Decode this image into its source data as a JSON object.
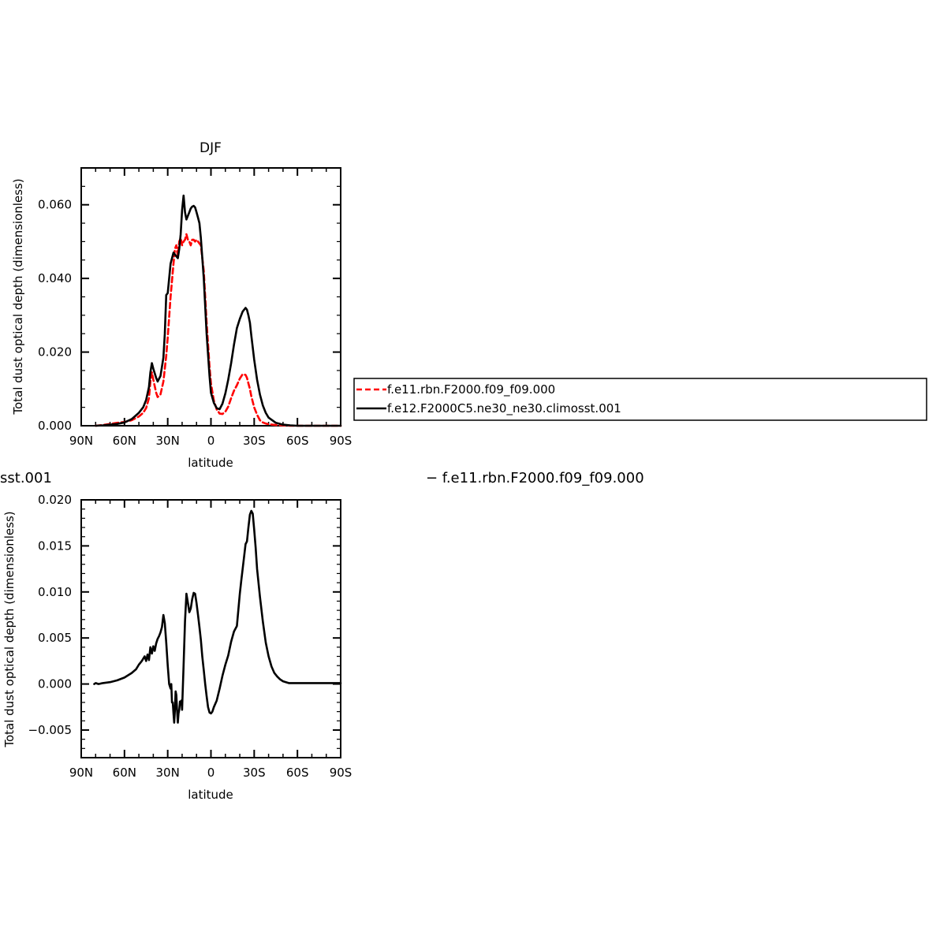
{
  "chart_data": [
    {
      "type": "line",
      "title": "DJF",
      "xlabel": "latitude",
      "ylabel": "Total dust optical depth (dimensionless)",
      "xlim": [
        90,
        -90
      ],
      "ylim": [
        0,
        0.07
      ],
      "xticks": [
        90,
        60,
        30,
        0,
        -30,
        -60,
        -90
      ],
      "xtick_labels": [
        "90N",
        "60N",
        "30N",
        "0",
        "30S",
        "60S",
        "90S"
      ],
      "yticks": [
        0.0,
        0.02,
        0.04,
        0.06
      ],
      "ytick_labels": [
        "0.000",
        "0.020",
        "0.040",
        "0.060"
      ],
      "legend": {
        "placement": "right",
        "entries": [
          {
            "label": "f.e11.rbn.F2000.f09_f09.000",
            "color": "#ff0000",
            "style": "dashed"
          },
          {
            "label": "f.e12.F2000C5.ne30_ne30.climosst.001",
            "color": "#000000",
            "style": "solid"
          }
        ]
      },
      "series": [
        {
          "name": "f.e11.rbn.F2000.f09_f09.000",
          "color": "#ff0000",
          "dash": true,
          "x": [
            80,
            75,
            70,
            65,
            60,
            55,
            50,
            47,
            45,
            43,
            42,
            41,
            40,
            38,
            37,
            35,
            33,
            31,
            30,
            28,
            26,
            25,
            24,
            23,
            22,
            21,
            20,
            19,
            18,
            17,
            16,
            15,
            14,
            13,
            12,
            11,
            10,
            9,
            8,
            7,
            5,
            3,
            1,
            0,
            -2,
            -4,
            -6,
            -8,
            -10,
            -12,
            -14,
            -16,
            -18,
            -20,
            -22,
            -24,
            -25,
            -26,
            -27,
            -28,
            -30,
            -32,
            -34,
            -36,
            -38,
            -40,
            -45,
            -50,
            -55,
            -60,
            -70,
            -80,
            -90
          ],
          "y": [
            0.0,
            0.0002,
            0.0005,
            0.0008,
            0.001,
            0.0015,
            0.0025,
            0.0035,
            0.0048,
            0.0075,
            0.012,
            0.0145,
            0.0125,
            0.009,
            0.0078,
            0.0085,
            0.012,
            0.019,
            0.024,
            0.035,
            0.044,
            0.048,
            0.049,
            0.046,
            0.05,
            0.051,
            0.049,
            0.05,
            0.0505,
            0.052,
            0.0505,
            0.05,
            0.049,
            0.0505,
            0.0505,
            0.05,
            0.0505,
            0.05,
            0.0495,
            0.049,
            0.042,
            0.028,
            0.016,
            0.0115,
            0.0068,
            0.0044,
            0.0033,
            0.0032,
            0.0038,
            0.0052,
            0.0075,
            0.0095,
            0.011,
            0.0128,
            0.014,
            0.0138,
            0.013,
            0.0115,
            0.01,
            0.008,
            0.005,
            0.003,
            0.0015,
            0.0009,
            0.0006,
            0.0004,
            0.0002,
            0.0001,
            0.0,
            0.0,
            0.0,
            0.0,
            0.0
          ]
        },
        {
          "name": "f.e12.F2000C5.ne30_ne30.climosst.001",
          "color": "#000000",
          "dash": false,
          "x": [
            80,
            75,
            70,
            65,
            60,
            55,
            50,
            47,
            45,
            43,
            42,
            41,
            40,
            38,
            37,
            35,
            33,
            32,
            31,
            30,
            28,
            26,
            25,
            24,
            23,
            22,
            21,
            20,
            19,
            18,
            17,
            16,
            15,
            14,
            13,
            12,
            11,
            10,
            9,
            8,
            7,
            5,
            3,
            1,
            0,
            -2,
            -4,
            -6,
            -8,
            -10,
            -12,
            -14,
            -16,
            -18,
            -20,
            -22,
            -24,
            -25,
            -26,
            -27,
            -28,
            -30,
            -32,
            -34,
            -36,
            -38,
            -40,
            -45,
            -50,
            -55,
            -60,
            -70,
            -80,
            -90
          ],
          "y": [
            0.0,
            0.0001,
            0.0003,
            0.0005,
            0.0009,
            0.0018,
            0.0035,
            0.005,
            0.007,
            0.0105,
            0.0145,
            0.017,
            0.0155,
            0.013,
            0.012,
            0.0135,
            0.0185,
            0.025,
            0.0355,
            0.036,
            0.044,
            0.047,
            0.0465,
            0.046,
            0.0455,
            0.048,
            0.052,
            0.0585,
            0.0625,
            0.058,
            0.056,
            0.057,
            0.058,
            0.059,
            0.0595,
            0.0597,
            0.0593,
            0.058,
            0.0565,
            0.055,
            0.051,
            0.04,
            0.025,
            0.0135,
            0.009,
            0.0062,
            0.0048,
            0.0045,
            0.006,
            0.0088,
            0.0125,
            0.017,
            0.022,
            0.0265,
            0.029,
            0.031,
            0.032,
            0.0315,
            0.03,
            0.028,
            0.0245,
            0.018,
            0.0125,
            0.0085,
            0.0055,
            0.0035,
            0.0022,
            0.0008,
            0.0003,
            0.0001,
            0.0,
            0.0,
            0.0,
            0.0
          ]
        }
      ]
    },
    {
      "type": "line",
      "title": "",
      "xlabel": "latitude",
      "ylabel": "Total dust optical depth (dimensionless)",
      "xlim": [
        90,
        -90
      ],
      "ylim": [
        -0.008,
        0.02
      ],
      "xticks": [
        90,
        60,
        30,
        0,
        -30,
        -60,
        -90
      ],
      "xtick_labels": [
        "90N",
        "60N",
        "30N",
        "0",
        "30S",
        "60S",
        "90S"
      ],
      "yticks": [
        -0.005,
        0.0,
        0.005,
        0.01,
        0.015,
        0.02
      ],
      "ytick_labels": [
        "−0.005",
        "0.000",
        "0.005",
        "0.010",
        "0.015",
        "0.020"
      ],
      "series": [
        {
          "color": "#000000",
          "dash": false,
          "x": [
            81,
            80,
            78,
            75,
            70,
            65,
            60,
            55,
            52,
            50,
            48,
            46,
            45,
            44,
            43,
            42,
            41,
            40,
            39,
            38,
            37,
            36,
            35,
            34,
            33,
            32,
            31,
            30,
            29,
            28,
            27.5,
            27,
            26.5,
            26,
            25.5,
            25,
            24.5,
            24,
            23.5,
            23,
            22.5,
            22,
            21.5,
            21,
            20.5,
            20,
            19,
            18,
            17,
            16,
            15,
            14,
            13,
            12,
            11,
            10,
            9,
            8,
            7,
            6,
            5,
            4,
            3,
            2,
            1,
            0,
            -1,
            -2,
            -4,
            -6,
            -8,
            -10,
            -12,
            -14,
            -16,
            -18,
            -20,
            -21,
            -22,
            -23,
            -24,
            -25,
            -26,
            -27,
            -28,
            -29,
            -30,
            -31,
            -32,
            -34,
            -36,
            -38,
            -40,
            -42,
            -44,
            -46,
            -48,
            -50,
            -52,
            -54,
            -56,
            -58,
            -60,
            -65,
            -70,
            -80,
            -90
          ],
          "y": [
            0.0,
            0.0001,
            0.0,
            0.0001,
            0.0002,
            0.0004,
            0.0007,
            0.0012,
            0.0016,
            0.0021,
            0.0025,
            0.003,
            0.0025,
            0.0032,
            0.0026,
            0.004,
            0.0033,
            0.0041,
            0.0036,
            0.0044,
            0.0049,
            0.0052,
            0.0056,
            0.0062,
            0.0075,
            0.0066,
            0.0045,
            0.002,
            0.0,
            -0.0005,
            0.0,
            -0.002,
            -0.002,
            -0.0032,
            -0.0042,
            -0.0028,
            -0.0008,
            -0.0012,
            -0.0028,
            -0.0042,
            -0.0032,
            -0.0028,
            -0.0019,
            -0.0022,
            -0.0018,
            -0.0028,
            0.002,
            0.0068,
            0.0098,
            0.0088,
            0.0078,
            0.0082,
            0.0092,
            0.0099,
            0.0098,
            0.0088,
            0.0075,
            0.0062,
            0.0048,
            0.003,
            0.0015,
            0.0,
            -0.0013,
            -0.0025,
            -0.0031,
            -0.0032,
            -0.003,
            -0.0025,
            -0.0018,
            -0.0005,
            0.0009,
            0.0021,
            0.0031,
            0.0046,
            0.0057,
            0.0063,
            0.0098,
            0.0112,
            0.0125,
            0.0138,
            0.0152,
            0.0155,
            0.017,
            0.0184,
            0.0188,
            0.0185,
            0.0168,
            0.0148,
            0.0125,
            0.0095,
            0.0068,
            0.0045,
            0.003,
            0.0019,
            0.0012,
            0.0008,
            0.0005,
            0.0003,
            0.0002,
            0.0001,
            0.0001,
            0.0001,
            0.0001,
            0.0001,
            0.0001,
            0.0001,
            0.0001
          ]
        }
      ]
    }
  ],
  "overlay_text": {
    "left_fragment": "sst.001",
    "right_fragment": "− f.e11.rbn.F2000.f09_f09.000"
  }
}
